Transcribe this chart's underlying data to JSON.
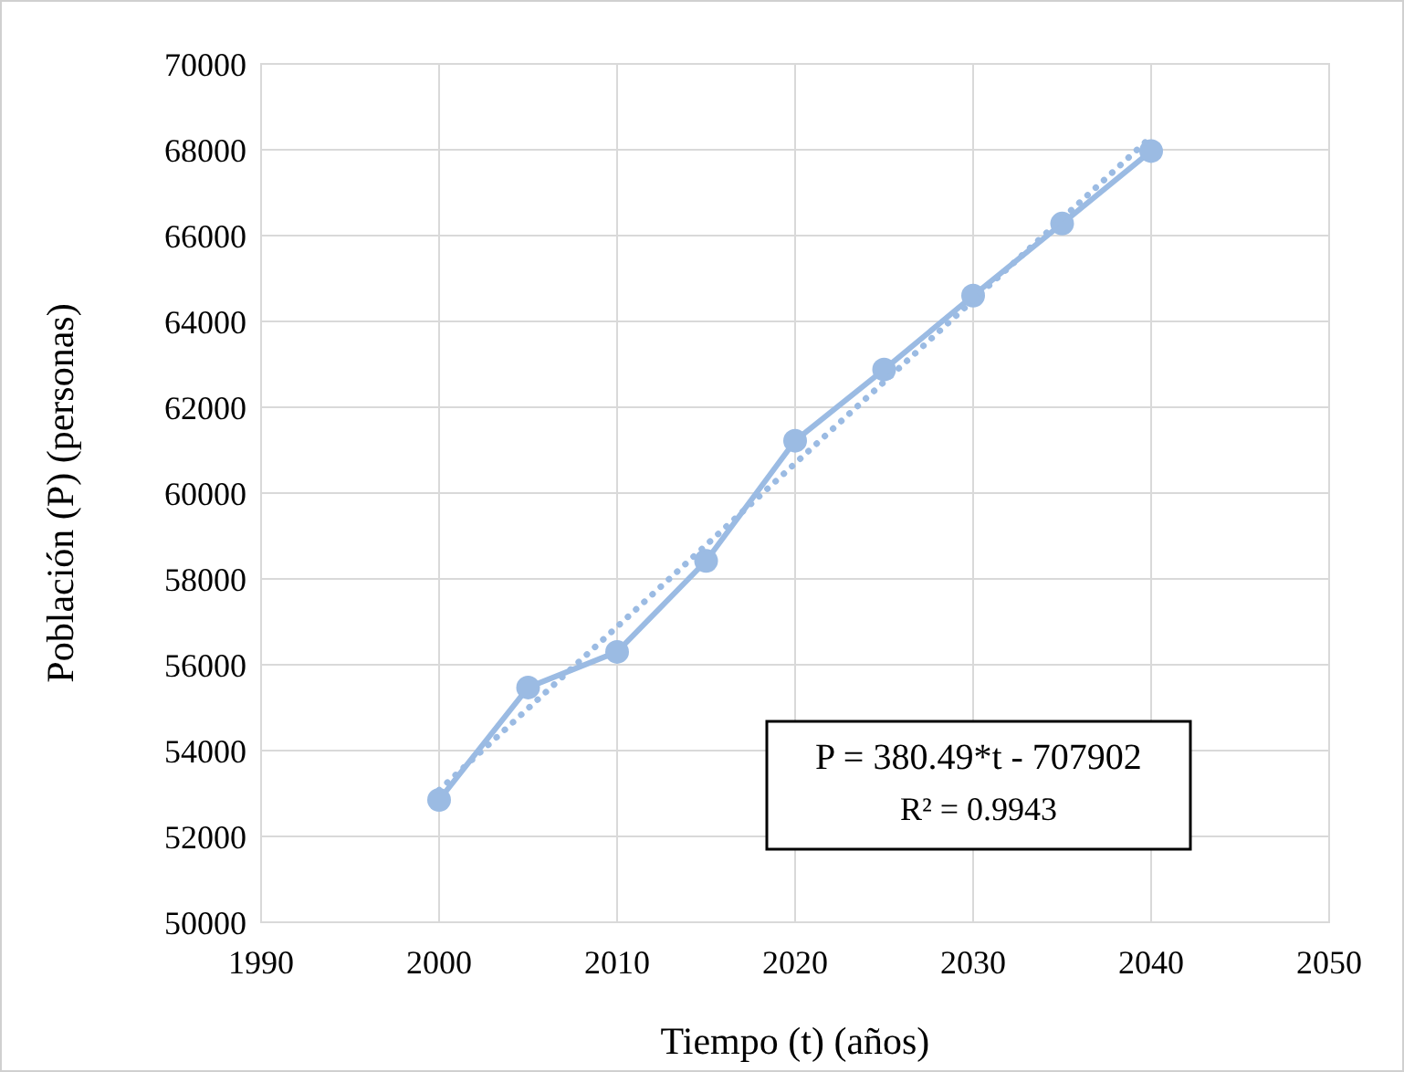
{
  "chart_data": {
    "type": "line",
    "xlabel": "Tiempo (t) (años)",
    "ylabel": "Población (P) (personas)",
    "xlim": [
      1990,
      2050
    ],
    "xticks": [
      1990,
      2000,
      2010,
      2020,
      2030,
      2040,
      2050
    ],
    "ylim": [
      50000,
      70000
    ],
    "yticks": [
      50000,
      52000,
      54000,
      56000,
      58000,
      60000,
      62000,
      64000,
      66000,
      68000,
      70000
    ],
    "grid": true,
    "series": [
      {
        "color": "#9bbbe3",
        "marker": "circle",
        "line_style": "solid",
        "x": [
          2000,
          2005,
          2010,
          2015,
          2020,
          2025,
          2030,
          2035,
          2040
        ],
        "values": [
          52850,
          55470,
          56300,
          58420,
          61220,
          62880,
          64600,
          66280,
          67970
        ]
      },
      {
        "type": "line",
        "color": "#9bbbe3",
        "marker": "none",
        "line_style": "dotted",
        "x": [
          2000,
          2040
        ],
        "values": [
          53080,
          68300
        ]
      }
    ],
    "annotations": [
      "P = 380.49*t - 707902",
      "R² = 0.9943"
    ]
  }
}
